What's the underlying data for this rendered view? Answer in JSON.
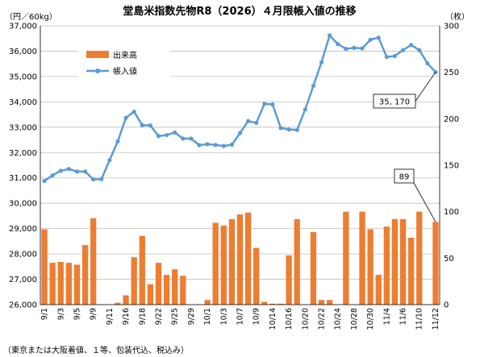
{
  "chart_data": {
    "type": "bar+line",
    "title": "堂島米指数先物R8（2026）４月限帳入値の推移",
    "left_unit": "（円／60kg）",
    "right_unit": "（枚）",
    "footnote": "（東京または大阪着値、１等、包装代込、税込み）",
    "left_axis": {
      "min": 26000,
      "max": 37000,
      "step": 1000,
      "ticks": [
        "26,000",
        "27,000",
        "28,000",
        "29,000",
        "30,000",
        "31,000",
        "32,000",
        "33,000",
        "34,000",
        "35,000",
        "36,000",
        "37,000"
      ]
    },
    "right_axis": {
      "min": 0,
      "max": 300,
      "step": 50,
      "ticks": [
        "0",
        "50",
        "100",
        "150",
        "200",
        "250",
        "300"
      ]
    },
    "grid": true,
    "legend_position": "top-left",
    "colors": {
      "bars": "#ED7D31",
      "line": "#5B9BD5"
    },
    "x": [
      "9/1",
      "9/2",
      "9/3",
      "9/4",
      "9/5",
      "9/8",
      "9/9",
      "9/10",
      "9/11",
      "9/12",
      "9/16",
      "9/17",
      "9/18",
      "9/19",
      "9/22",
      "9/24",
      "9/25",
      "9/26",
      "9/29",
      "9/30",
      "10/1",
      "10/2",
      "10/3",
      "10/6",
      "10/7",
      "10/8",
      "10/9",
      "10/10",
      "10/14",
      "10/15",
      "10/16",
      "10/17",
      "10/20",
      "10/21",
      "10/22",
      "10/23",
      "10/24",
      "10/27",
      "10/28",
      "10/29",
      "10/30",
      "10/31",
      "11/4",
      "11/5",
      "11/6",
      "11/7",
      "11/10",
      "11/11",
      "11/12"
    ],
    "x_tick_labels": [
      "9/1",
      "9/3",
      "9/5",
      "9/9",
      "9/11",
      "9/16",
      "9/18",
      "9/22",
      "9/25",
      "9/29",
      "10/1",
      "10/3",
      "10/7",
      "10/9",
      "10/14",
      "10/16",
      "10/20",
      "10/22",
      "10/24",
      "10/28",
      "10/30",
      "11/4",
      "11/6",
      "11/10",
      "11/12"
    ],
    "series": [
      {
        "name": "出来高",
        "axis": "right",
        "type": "bar",
        "values": [
          81,
          45,
          46,
          45,
          43,
          64,
          93,
          0,
          0,
          2,
          10,
          51,
          74,
          22,
          45,
          32,
          38,
          31,
          0,
          0,
          5,
          88,
          85,
          92,
          97,
          99,
          61,
          3,
          1,
          1,
          53,
          92,
          0,
          78,
          5,
          5,
          0,
          100,
          0,
          100,
          81,
          32,
          84,
          92,
          92,
          72,
          100,
          0,
          89
        ]
      },
      {
        "name": "帳入値",
        "axis": "left",
        "type": "line",
        "values": [
          30880,
          31100,
          31280,
          31350,
          31250,
          31250,
          30940,
          30950,
          31700,
          32440,
          33370,
          33610,
          33080,
          33070,
          32650,
          32690,
          32790,
          32550,
          32550,
          32290,
          32330,
          32300,
          32260,
          32310,
          32770,
          33240,
          33170,
          33920,
          33900,
          32970,
          32910,
          32890,
          33700,
          34630,
          35560,
          36620,
          36280,
          36090,
          36130,
          36110,
          36450,
          36530,
          35770,
          35810,
          36040,
          36240,
          36040,
          35520,
          35170
        ]
      }
    ],
    "annotations": [
      {
        "series": "帳入値",
        "index": 48,
        "text": "35, 170"
      },
      {
        "series": "出来高",
        "index": 48,
        "text": "89"
      }
    ]
  }
}
